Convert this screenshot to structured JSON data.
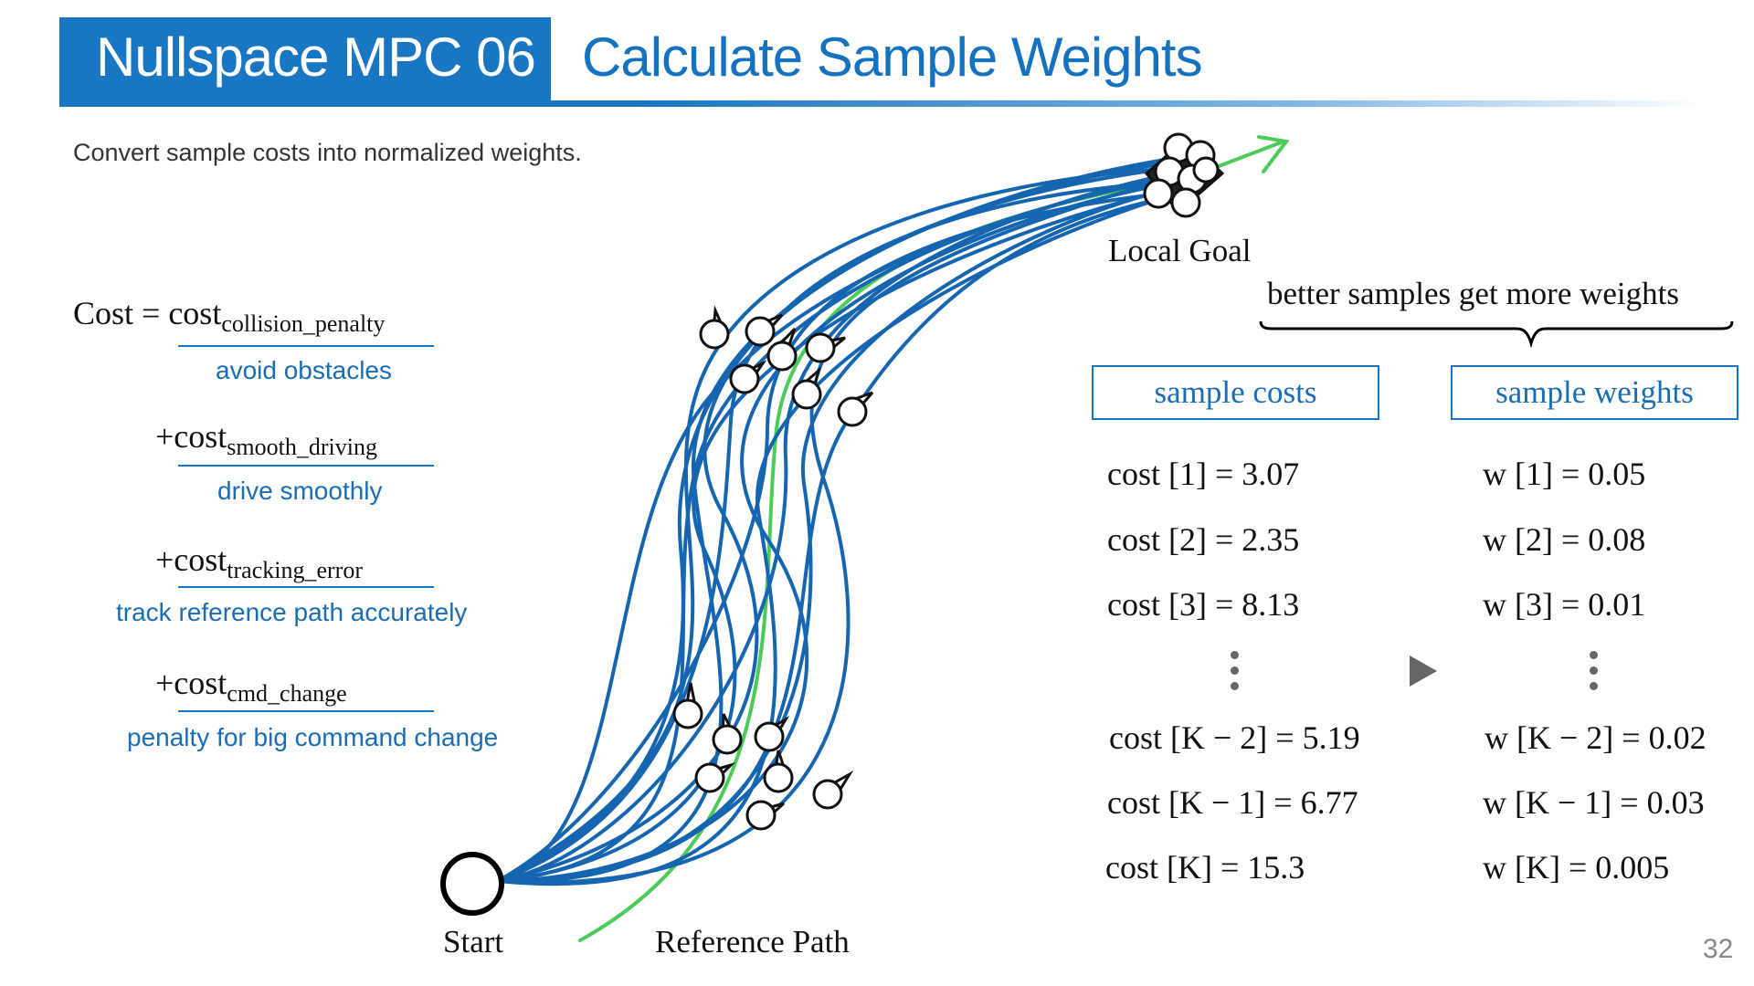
{
  "header": {
    "left_title": "Nullspace MPC 06",
    "right_title": "Calculate Sample Weights"
  },
  "subtitle": "Convert sample costs into normalized weights.",
  "formula": {
    "prefix": "Cost = cost",
    "term1_sub": "collision_penalty",
    "term1_desc": "avoid obstacles",
    "term2_prefix": "+cost",
    "term2_sub": "smooth_driving",
    "term2_desc": "drive smoothly",
    "term3_prefix": "+cost",
    "term3_sub": "tracking_error",
    "term3_desc": "track reference path accurately",
    "term4_prefix": "+cost",
    "term4_sub": "cmd_change",
    "term4_desc": "penalty for big command change"
  },
  "diagram": {
    "local_goal": "Local Goal",
    "start": "Start",
    "reference_path": "Reference Path",
    "colors": {
      "samples": "#1565b0",
      "reference": "#4ccb5a",
      "accent": "#1976c2"
    }
  },
  "weights_note": "better samples get more weights",
  "costs_header": "sample costs",
  "weights_header": "sample weights",
  "costs": [
    "cost [1] = 3.07",
    "cost [2] = 2.35",
    "cost [3] = 8.13",
    "cost [K − 2] = 5.19",
    "cost [K − 1] = 6.77",
    "cost [K] = 15.3"
  ],
  "weights": [
    "w [1] = 0.05",
    "w [2] = 0.08",
    "w [3] = 0.01",
    "w [K − 2] = 0.02",
    "w [K − 1] = 0.03",
    "w [K] = 0.005"
  ],
  "page_number": "32"
}
